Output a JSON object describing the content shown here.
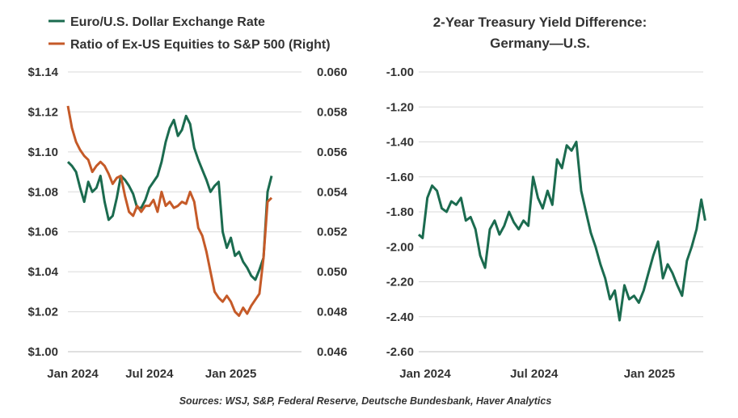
{
  "source": "Sources: WSJ, S&P, Federal Reserve, Deutsche Bundesbank, Haver Analytics",
  "chart_data": [
    {
      "type": "line",
      "title": "",
      "legend": [
        "Euro/U.S. Dollar Exchange Rate",
        "Ratio of Ex-US Equities to S&P 500 (Right)"
      ],
      "xlabel": "",
      "x_ticks": [
        "Jan 2024",
        "Jul 2024",
        "Jan 2025"
      ],
      "x_range": [
        0,
        17.2
      ],
      "x_tick_positions": [
        0,
        6,
        12
      ],
      "y_left": {
        "range": [
          1.0,
          1.14
        ],
        "ticks": [
          1.14,
          1.12,
          1.1,
          1.08,
          1.06,
          1.04,
          1.02,
          1.0
        ],
        "tick_labels": [
          "$1.14",
          "$1.12",
          "$1.10",
          "$1.08",
          "$1.06",
          "$1.04",
          "$1.02",
          "$1.00"
        ]
      },
      "y_right": {
        "range": [
          0.046,
          0.06
        ],
        "ticks": [
          0.06,
          0.058,
          0.056,
          0.054,
          0.052,
          0.05,
          0.048,
          0.046
        ],
        "tick_labels": [
          "0.060",
          "0.058",
          "0.056",
          "0.054",
          "0.052",
          "0.050",
          "0.048",
          "0.046"
        ]
      },
      "series": [
        {
          "name": "Euro/U.S. Dollar Exchange Rate",
          "axis": "left",
          "color": "#1b6b4f",
          "x": [
            0,
            0.3,
            0.6,
            0.9,
            1.2,
            1.5,
            1.8,
            2.1,
            2.4,
            2.7,
            3.0,
            3.3,
            3.6,
            3.9,
            4.2,
            4.5,
            4.8,
            5.1,
            5.4,
            5.7,
            6.0,
            6.3,
            6.6,
            6.9,
            7.2,
            7.5,
            7.8,
            8.1,
            8.4,
            8.7,
            9.0,
            9.3,
            9.6,
            9.9,
            10.2,
            10.5,
            10.8,
            11.1,
            11.4,
            11.7,
            12.0,
            12.3,
            12.6,
            12.9,
            13.2,
            13.5,
            13.8,
            14.1,
            14.4,
            14.7,
            15.0
          ],
          "values": [
            1.095,
            1.093,
            1.09,
            1.082,
            1.075,
            1.085,
            1.08,
            1.082,
            1.088,
            1.075,
            1.066,
            1.068,
            1.077,
            1.088,
            1.086,
            1.083,
            1.079,
            1.072,
            1.072,
            1.076,
            1.082,
            1.085,
            1.088,
            1.095,
            1.105,
            1.112,
            1.116,
            1.108,
            1.111,
            1.118,
            1.114,
            1.102,
            1.096,
            1.091,
            1.086,
            1.08,
            1.083,
            1.085,
            1.06,
            1.052,
            1.057,
            1.048,
            1.05,
            1.045,
            1.042,
            1.038,
            1.036,
            1.041,
            1.047,
            1.08,
            1.088
          ]
        },
        {
          "name": "Ratio of Ex-US Equities to S&P 500 (Right)",
          "axis": "right",
          "color": "#c55a28",
          "x": [
            0,
            0.3,
            0.6,
            0.9,
            1.2,
            1.5,
            1.8,
            2.1,
            2.4,
            2.7,
            3.0,
            3.3,
            3.6,
            3.9,
            4.2,
            4.5,
            4.8,
            5.1,
            5.4,
            5.7,
            6.0,
            6.3,
            6.6,
            6.9,
            7.2,
            7.5,
            7.8,
            8.1,
            8.4,
            8.7,
            9.0,
            9.3,
            9.6,
            9.9,
            10.2,
            10.5,
            10.8,
            11.1,
            11.4,
            11.7,
            12.0,
            12.3,
            12.6,
            12.9,
            13.2,
            13.5,
            13.8,
            14.1,
            14.4,
            14.7,
            15.0
          ],
          "values": [
            0.0583,
            0.0572,
            0.0565,
            0.0561,
            0.0558,
            0.0556,
            0.055,
            0.0553,
            0.0555,
            0.0553,
            0.0549,
            0.0544,
            0.0547,
            0.0548,
            0.0538,
            0.053,
            0.0528,
            0.0533,
            0.053,
            0.0533,
            0.0533,
            0.0536,
            0.053,
            0.054,
            0.0533,
            0.0535,
            0.0532,
            0.0533,
            0.0535,
            0.0534,
            0.054,
            0.0535,
            0.0522,
            0.0518,
            0.051,
            0.05,
            0.049,
            0.0487,
            0.0485,
            0.0488,
            0.0485,
            0.048,
            0.0478,
            0.0482,
            0.0479,
            0.0483,
            0.0486,
            0.0489,
            0.0507,
            0.0535,
            0.0537
          ]
        }
      ]
    },
    {
      "type": "line",
      "title": "2-Year Treasury  Yield Difference:",
      "subtitle": "Germany—U.S.",
      "legend": [],
      "xlabel": "",
      "x_ticks": [
        "Jan 2024",
        "Jul 2024",
        "Jan 2025"
      ],
      "x_range": [
        0,
        14.8
      ],
      "x_tick_positions": [
        0,
        6,
        12
      ],
      "y": {
        "range": [
          -2.6,
          -1.0
        ],
        "ticks": [
          -1.0,
          -1.2,
          -1.4,
          -1.6,
          -1.8,
          -2.0,
          -2.2,
          -2.4,
          -2.6
        ],
        "tick_labels": [
          "-1.00",
          "-1.20",
          "-1.40",
          "-1.60",
          "-1.80",
          "-2.00",
          "-2.20",
          "-2.40",
          "-2.60"
        ]
      },
      "series": [
        {
          "name": "2-Year Treasury Yield Difference: Germany—U.S.",
          "color": "#1b6b4f",
          "x": [
            0,
            0.2,
            0.45,
            0.7,
            0.95,
            1.2,
            1.45,
            1.7,
            1.95,
            2.2,
            2.45,
            2.7,
            2.95,
            3.2,
            3.45,
            3.7,
            3.95,
            4.2,
            4.45,
            4.7,
            4.95,
            5.2,
            5.45,
            5.7,
            5.95,
            6.2,
            6.45,
            6.7,
            6.95,
            7.2,
            7.45,
            7.7,
            7.95,
            8.2,
            8.45,
            8.7,
            8.95,
            9.2,
            9.45,
            9.7,
            9.95,
            10.2,
            10.45,
            10.7,
            10.95,
            11.2,
            11.45,
            11.7,
            11.95,
            12.2,
            12.45,
            12.7,
            12.95,
            13.2,
            13.45,
            13.7,
            13.95,
            14.2,
            14.45,
            14.7,
            14.9
          ],
          "values": [
            -1.93,
            -1.95,
            -1.72,
            -1.65,
            -1.68,
            -1.78,
            -1.8,
            -1.74,
            -1.76,
            -1.72,
            -1.85,
            -1.83,
            -1.9,
            -2.05,
            -2.12,
            -1.9,
            -1.85,
            -1.93,
            -1.88,
            -1.8,
            -1.86,
            -1.9,
            -1.85,
            -1.88,
            -1.6,
            -1.72,
            -1.78,
            -1.68,
            -1.76,
            -1.5,
            -1.55,
            -1.42,
            -1.45,
            -1.4,
            -1.68,
            -1.8,
            -1.92,
            -2.0,
            -2.1,
            -2.18,
            -2.3,
            -2.25,
            -2.42,
            -2.22,
            -2.3,
            -2.28,
            -2.32,
            -2.25,
            -2.15,
            -2.05,
            -1.97,
            -2.18,
            -2.1,
            -2.15,
            -2.22,
            -2.28,
            -2.08,
            -2.0,
            -1.9,
            -1.73,
            -1.85
          ]
        }
      ]
    }
  ]
}
